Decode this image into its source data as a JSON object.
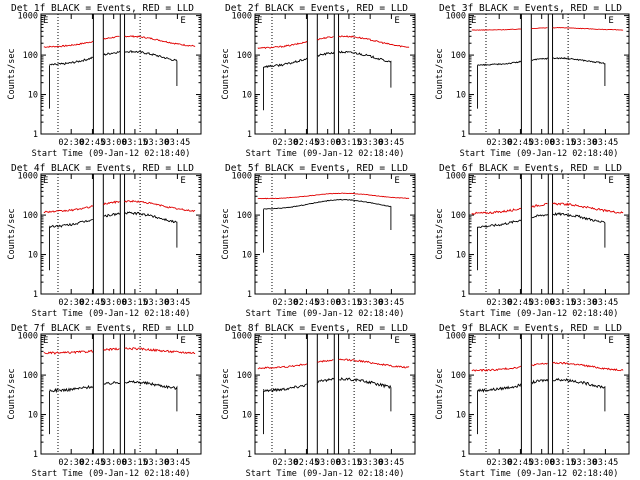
{
  "chart_data": {
    "type": "line",
    "y_scale": "log",
    "ylabel": "Counts/sec",
    "xlabel": "Start Time (09-Jan-12 02:18:40)",
    "y_ticks": [
      "1",
      "10",
      "100",
      "1000"
    ],
    "x_ticks": [
      "02:30",
      "02:45",
      "03:00",
      "03:15",
      "03:30",
      "03:45"
    ],
    "x_range_minutes": [
      -10,
      103
    ],
    "ylim": [
      1,
      1100
    ],
    "legend": "BLACK = Events, RED = LLD",
    "panels": [
      {
        "title": "Det 1f BLACK = Events, RED = LLD",
        "events_base": 55,
        "lld_base": 160,
        "lld_hump": 0.35,
        "lld_noise": 0.04,
        "ev_noise": 0.06,
        "gaps": [
          [
            27,
            34
          ],
          [
            46,
            49
          ]
        ],
        "dotted": [
          2,
          60
        ],
        "markers": [
          [
            -10,
            "E"
          ],
          [
            87,
            "E"
          ]
        ]
      },
      {
        "title": "Det 2f BLACK = Events, RED = LLD",
        "events_base": 50,
        "lld_base": 150,
        "lld_hump": 0.4,
        "lld_noise": 0.04,
        "ev_noise": 0.06,
        "gaps": [
          [
            27,
            34
          ],
          [
            46,
            49
          ]
        ],
        "dotted": [
          2,
          60
        ],
        "markers": [
          [
            -10,
            "E"
          ],
          [
            87,
            "E"
          ]
        ]
      },
      {
        "title": "Det 3f BLACK = Events, RED = LLD",
        "events_base": 55,
        "lld_base": 430,
        "lld_hump": 0.06,
        "lld_noise": 0.015,
        "ev_noise": 0.04,
        "gaps": [
          [
            27,
            34
          ],
          [
            46,
            49
          ]
        ],
        "dotted": [
          2,
          60
        ],
        "markers": [
          [
            -10,
            "E"
          ],
          [
            87,
            "E"
          ]
        ]
      },
      {
        "title": "Det 4f BLACK = Events, RED = LLD",
        "events_base": 50,
        "lld_base": 120,
        "lld_hump": 0.35,
        "lld_noise": 0.05,
        "ev_noise": 0.07,
        "gaps": [
          [
            27,
            34
          ],
          [
            46,
            49
          ]
        ],
        "dotted": [
          2,
          60
        ],
        "markers": [
          [
            -10,
            "E"
          ],
          [
            87,
            "E"
          ]
        ]
      },
      {
        "title": "Det 5f BLACK = Events, RED = LLD",
        "events_base": 140,
        "lld_base": 260,
        "lld_hump": 0.15,
        "lld_noise": 0.015,
        "ev_noise": 0.02,
        "gaps": [],
        "dotted": [
          2,
          60
        ],
        "markers": [
          [
            -10,
            "E"
          ],
          [
            87,
            "E"
          ]
        ]
      },
      {
        "title": "Det 6f BLACK = Events, RED = LLD",
        "events_base": 50,
        "lld_base": 110,
        "lld_hump": 0.3,
        "lld_noise": 0.06,
        "ev_noise": 0.07,
        "gaps": [
          [
            27,
            34
          ],
          [
            46,
            49
          ]
        ],
        "dotted": [
          2,
          60
        ],
        "markers": [
          [
            -10,
            "E"
          ],
          [
            87,
            "E"
          ]
        ]
      },
      {
        "title": "Det 7f BLACK = Events, RED = LLD",
        "events_base": 40,
        "lld_base": 360,
        "lld_hump": 0.12,
        "lld_noise": 0.06,
        "ev_noise": 0.08,
        "gaps": [
          [
            27,
            34
          ],
          [
            46,
            49
          ]
        ],
        "dotted": [
          2,
          60
        ],
        "markers": [
          [
            -10,
            "E"
          ],
          [
            87,
            "E"
          ]
        ]
      },
      {
        "title": "Det 8f BLACK = Events, RED = LLD",
        "events_base": 40,
        "lld_base": 150,
        "lld_hump": 0.25,
        "lld_noise": 0.05,
        "ev_noise": 0.08,
        "gaps": [
          [
            27,
            34
          ],
          [
            46,
            49
          ]
        ],
        "dotted": [
          2,
          60
        ],
        "markers": [
          [
            -10,
            "E"
          ],
          [
            87,
            "E"
          ]
        ]
      },
      {
        "title": "Det 9f BLACK = Events, RED = LLD",
        "events_base": 40,
        "lld_base": 130,
        "lld_hump": 0.22,
        "lld_noise": 0.05,
        "ev_noise": 0.08,
        "gaps": [
          [
            27,
            34
          ],
          [
            46,
            49
          ]
        ],
        "dotted": [
          2,
          60
        ],
        "markers": [
          [
            -10,
            "E"
          ],
          [
            87,
            "E"
          ]
        ]
      }
    ],
    "colors": {
      "events": "#000000",
      "lld": "#e00000",
      "axis": "#000000"
    }
  }
}
